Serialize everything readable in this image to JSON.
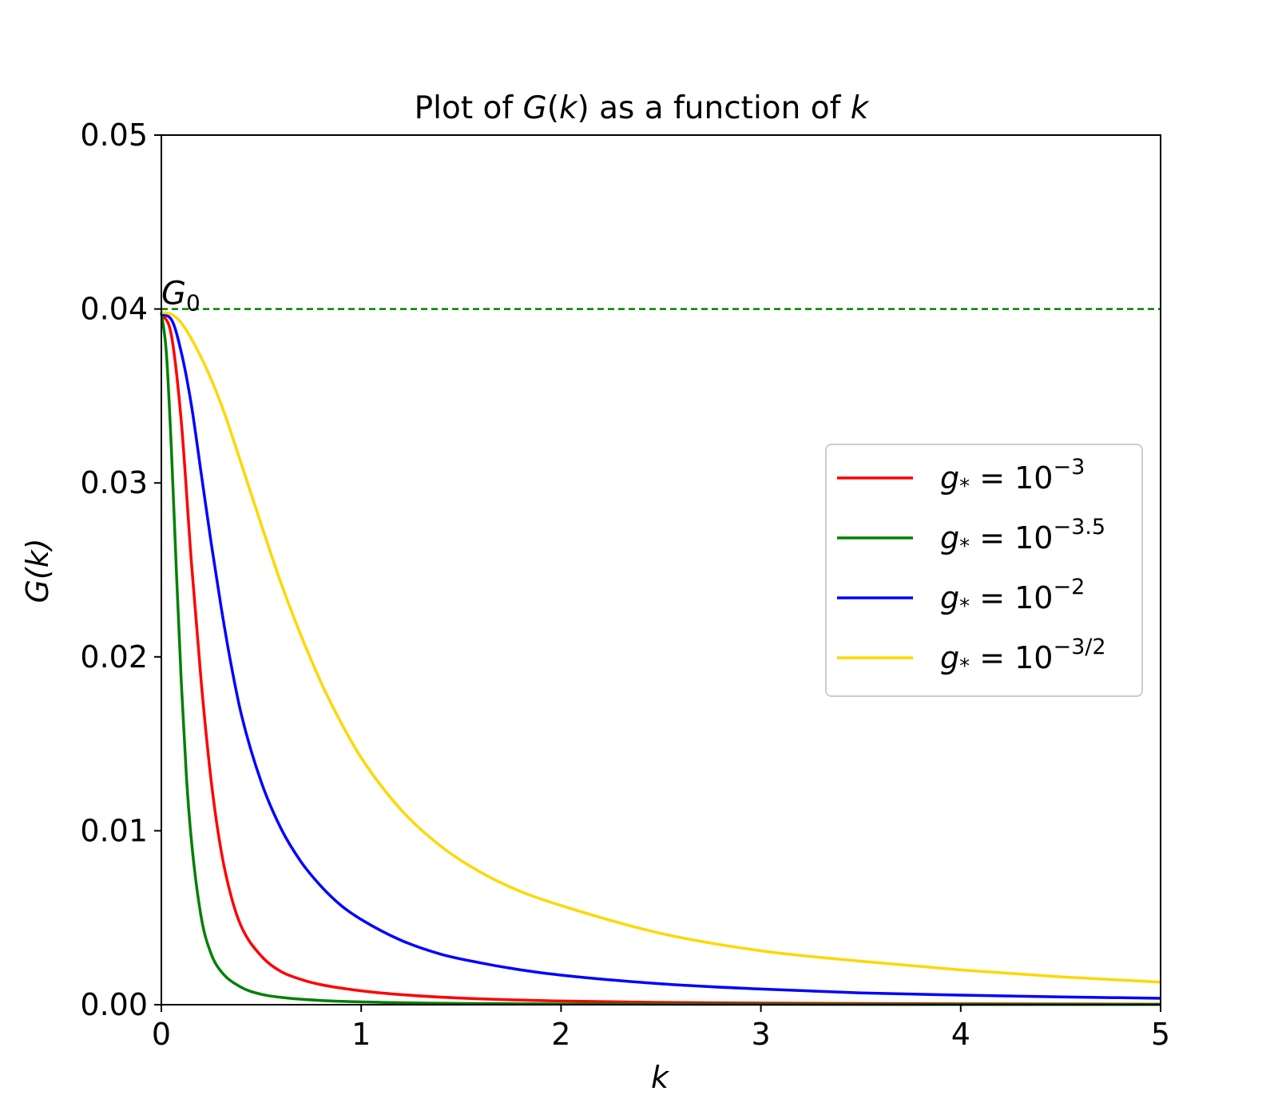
{
  "chart_data": {
    "type": "line",
    "title": "Plot of G(k) as a function of k",
    "title_parts": {
      "prefix": "Plot of ",
      "func": "G",
      "func_arg": "(",
      "func_var": "k",
      "func_close": ")",
      "middle": " as a function of ",
      "var": "k"
    },
    "xlabel": "k",
    "ylabel": "G(k)",
    "xlim": [
      0,
      5
    ],
    "ylim": [
      0,
      0.05
    ],
    "xticks": [
      0,
      1,
      2,
      3,
      4,
      5
    ],
    "xtick_labels": [
      "0",
      "1",
      "2",
      "3",
      "4",
      "5"
    ],
    "yticks": [
      0.0,
      0.01,
      0.02,
      0.03,
      0.04,
      0.05
    ],
    "ytick_labels": [
      "0.00",
      "0.01",
      "0.02",
      "0.03",
      "0.04",
      "0.05"
    ],
    "grid": false,
    "legend_position": "center-right",
    "reference_line": {
      "y": 0.04,
      "label": "G",
      "label_sub": "0",
      "color": "#008000",
      "style": "dashed"
    },
    "series": [
      {
        "name": "g* = 10^-3",
        "name_base": "g",
        "name_sub": "*",
        "name_eq": " = 10",
        "name_exp": "−3",
        "color": "#ff0000",
        "x": [
          0,
          0.05,
          0.1,
          0.15,
          0.2,
          0.25,
          0.3,
          0.35,
          0.4,
          0.5,
          0.6,
          0.7,
          0.8,
          1.0,
          1.2,
          1.5,
          2.0,
          2.5,
          3.0,
          4.0,
          5.0
        ],
        "y": [
          0.0398,
          0.0385,
          0.0335,
          0.0255,
          0.0185,
          0.0128,
          0.0088,
          0.0062,
          0.0045,
          0.0028,
          0.0019,
          0.00145,
          0.00115,
          0.0008,
          0.00058,
          0.00038,
          0.00021,
          0.00013,
          9e-05,
          5e-05,
          3e-05
        ]
      },
      {
        "name": "g* = 10^-3.5",
        "name_base": "g",
        "name_sub": "*",
        "name_eq": " = 10",
        "name_exp": "−3.5",
        "color": "#008000",
        "x": [
          0,
          0.025,
          0.05,
          0.075,
          0.1,
          0.125,
          0.15,
          0.2,
          0.25,
          0.3,
          0.4,
          0.5,
          0.6,
          0.8,
          1.0,
          1.5,
          2.0,
          3.0,
          4.0,
          5.0
        ],
        "y": [
          0.0398,
          0.0375,
          0.032,
          0.025,
          0.0185,
          0.0132,
          0.0095,
          0.005,
          0.0029,
          0.0019,
          0.001,
          0.0006,
          0.00042,
          0.00024,
          0.00016,
          7e-05,
          4e-05,
          2e-05,
          1e-05,
          1e-05
        ]
      },
      {
        "name": "g* = 10^-2",
        "name_base": "g",
        "name_sub": "*",
        "name_eq": " = 10",
        "name_exp": "−2",
        "color": "#0000ff",
        "x": [
          0,
          0.05,
          0.1,
          0.15,
          0.2,
          0.25,
          0.3,
          0.35,
          0.4,
          0.5,
          0.6,
          0.7,
          0.8,
          0.9,
          1.0,
          1.2,
          1.4,
          1.6,
          1.8,
          2.0,
          2.5,
          3.0,
          3.5,
          4.0,
          4.5,
          5.0
        ],
        "y": [
          0.0397,
          0.0394,
          0.0375,
          0.0345,
          0.0305,
          0.0265,
          0.0228,
          0.0195,
          0.0167,
          0.0128,
          0.0101,
          0.0082,
          0.0068,
          0.0057,
          0.0049,
          0.0037,
          0.0029,
          0.0024,
          0.002,
          0.0017,
          0.0012,
          0.0009,
          0.00068,
          0.00055,
          0.00045,
          0.00037
        ]
      },
      {
        "name": "g* = 10^-3/2",
        "name_base": "g",
        "name_sub": "*",
        "name_eq": " = 10",
        "name_exp": "−3/2",
        "color": "#ffd700",
        "x": [
          0,
          0.05,
          0.1,
          0.2,
          0.3,
          0.4,
          0.5,
          0.6,
          0.7,
          0.8,
          0.9,
          1.0,
          1.2,
          1.4,
          1.6,
          1.8,
          2.0,
          2.5,
          3.0,
          3.5,
          4.0,
          4.5,
          5.0
        ],
        "y": [
          0.0398,
          0.0397,
          0.0392,
          0.0372,
          0.0345,
          0.0311,
          0.0276,
          0.0242,
          0.0212,
          0.0185,
          0.0162,
          0.0142,
          0.0112,
          0.0091,
          0.0076,
          0.0065,
          0.0057,
          0.0041,
          0.0031,
          0.0025,
          0.002,
          0.0016,
          0.0013
        ]
      }
    ]
  }
}
